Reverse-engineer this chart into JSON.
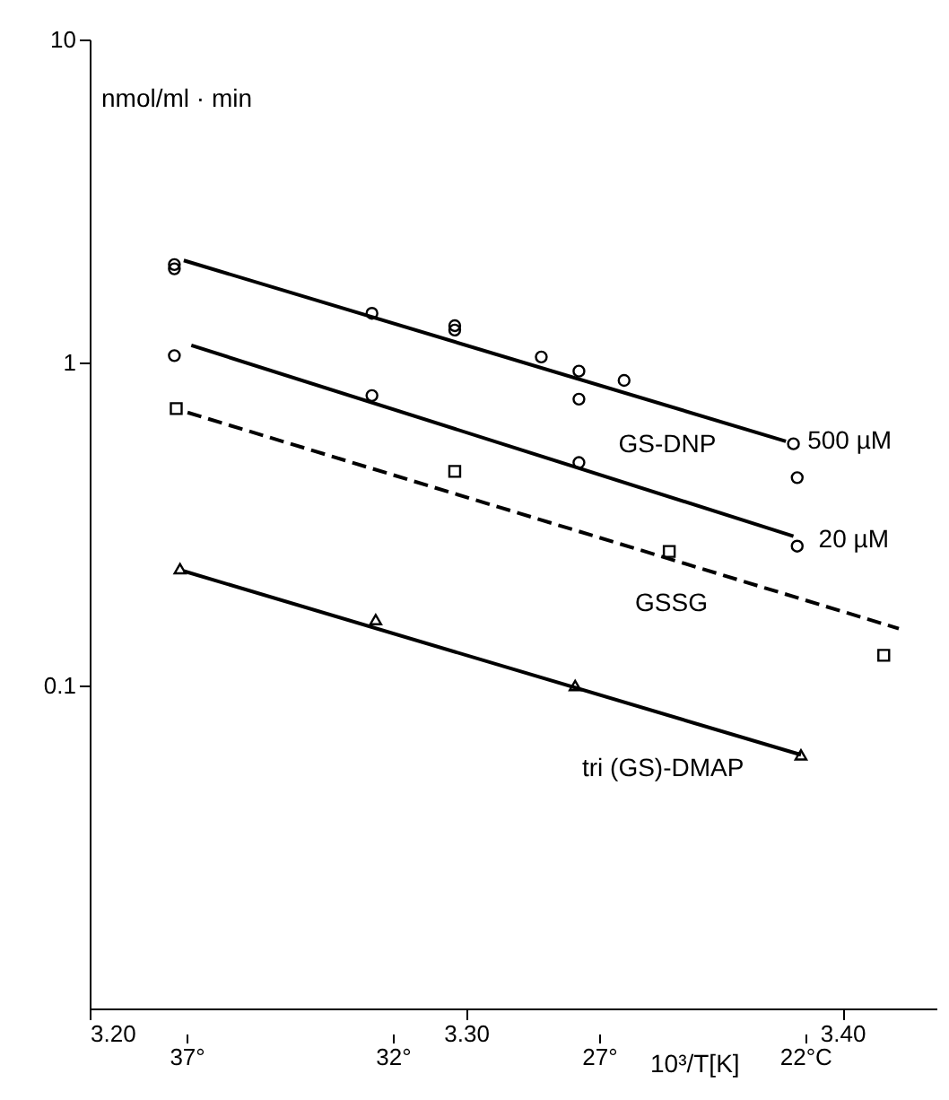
{
  "chart_data": {
    "type": "scatter",
    "ylabel": "nmol/ml · min",
    "xlabel": "10³/T[K]",
    "log": "y",
    "grid": false,
    "xlim": [
      3.2,
      3.425
    ],
    "xticks": [
      {
        "value": 3.2,
        "label": "3.20"
      },
      {
        "value": 3.3,
        "label": "3.30"
      },
      {
        "value": 3.4,
        "label": "3.40"
      }
    ],
    "x2lim": [
      39.35,
      18.82
    ],
    "x2ticks": [
      {
        "value": 37,
        "label": "37°"
      },
      {
        "value": 32,
        "label": "32°"
      },
      {
        "value": 27,
        "label": "27°"
      },
      {
        "value": 22,
        "label": "22°C"
      }
    ],
    "ylim": [
      0.01,
      10
    ],
    "yticks": [
      0.1,
      1,
      10
    ],
    "series": [
      {
        "type": "scatter",
        "marker": "circle",
        "color": "#000000",
        "x": [
          3.2225,
          3.2225,
          3.275,
          3.297,
          3.297,
          3.32,
          3.33,
          3.342,
          3.33,
          3.387,
          3.388
        ],
        "values": [
          2.01,
          1.95,
          1.42,
          1.3,
          1.26,
          1.04,
          0.94,
          0.88,
          0.77,
          0.56,
          0.44
        ]
      },
      {
        "type": "line",
        "name": "500 µM",
        "marker": "none",
        "line_style": "solid",
        "color": "#000000",
        "x": [
          3.225,
          3.385
        ],
        "values": [
          2.07,
          0.57
        ]
      },
      {
        "type": "scatter",
        "marker": "circle",
        "color": "#000000",
        "x": [
          3.2225,
          3.275,
          3.33,
          3.388
        ],
        "values": [
          1.05,
          0.79,
          0.49,
          0.27
        ]
      },
      {
        "type": "line",
        "name": "20 µM",
        "marker": "none",
        "line_style": "solid",
        "color": "#000000",
        "x": [
          3.227,
          3.387
        ],
        "values": [
          1.13,
          0.29
        ]
      },
      {
        "type": "scatter",
        "marker": "square",
        "color": "#000000",
        "x": [
          3.223,
          3.297,
          3.354,
          3.411
        ],
        "values": [
          0.72,
          0.46,
          0.26,
          0.124
        ]
      },
      {
        "type": "line",
        "name": "GSSG",
        "marker": "none",
        "line_style": "dashed",
        "color": "#000000",
        "x": [
          3.226,
          3.415
        ],
        "values": [
          0.7,
          0.15
        ]
      },
      {
        "type": "scatter",
        "marker": "triangle",
        "color": "#000000",
        "x": [
          3.224,
          3.276,
          3.329,
          3.389
        ],
        "values": [
          0.23,
          0.16,
          0.1,
          0.061
        ]
      },
      {
        "type": "line",
        "name": "tri (GS)-DMAP",
        "marker": "none",
        "line_style": "solid",
        "color": "#000000",
        "x": [
          3.225,
          3.389
        ],
        "values": [
          0.226,
          0.061
        ]
      }
    ],
    "annotations": [
      "GS-DNP"
    ]
  }
}
